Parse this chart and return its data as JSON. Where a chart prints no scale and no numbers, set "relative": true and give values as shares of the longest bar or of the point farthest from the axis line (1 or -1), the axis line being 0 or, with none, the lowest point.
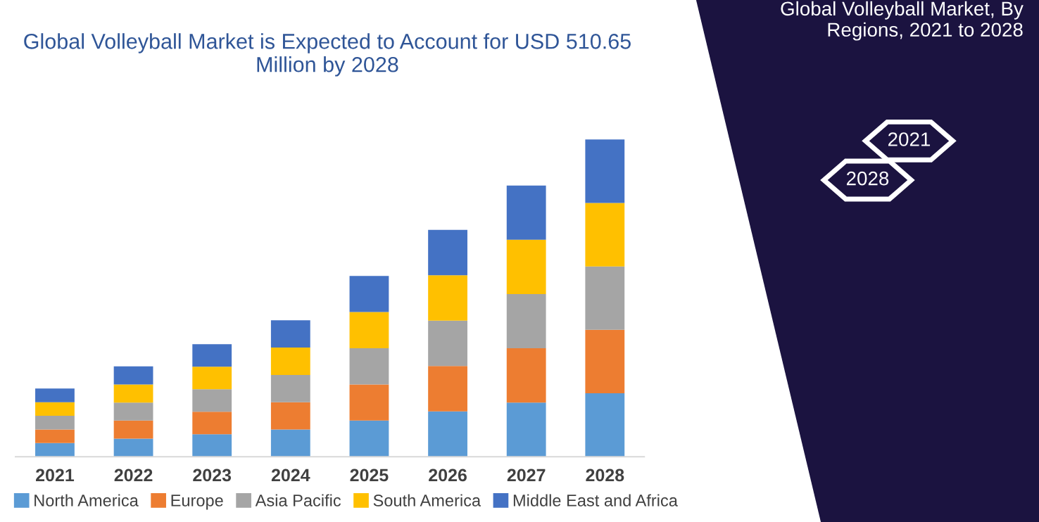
{
  "chart_data": {
    "type": "bar",
    "stacked": true,
    "relative": true,
    "title": "Global Volleyball Market is Expected to Account for USD 510.65\nMillion by 2028",
    "subtitle": "Global Volleyball Market, By\nRegions, 2021 to 2028",
    "annotations": [
      "2021",
      "2028"
    ],
    "categories": [
      "2021",
      "2022",
      "2023",
      "2024",
      "2025",
      "2026",
      "2027",
      "2028"
    ],
    "series": [
      {
        "name": "North America",
        "color": "#5b9bd5",
        "values": [
          0.043,
          0.057,
          0.071,
          0.086,
          0.114,
          0.143,
          0.171,
          0.2
        ]
      },
      {
        "name": "Europe",
        "color": "#ed7d31",
        "values": [
          0.043,
          0.057,
          0.071,
          0.086,
          0.114,
          0.143,
          0.171,
          0.2
        ]
      },
      {
        "name": "Asia Pacific",
        "color": "#a5a5a5",
        "values": [
          0.043,
          0.057,
          0.071,
          0.086,
          0.114,
          0.143,
          0.171,
          0.2
        ]
      },
      {
        "name": "South America",
        "color": "#ffc000",
        "values": [
          0.043,
          0.057,
          0.071,
          0.086,
          0.114,
          0.143,
          0.171,
          0.2
        ]
      },
      {
        "name": "Middle East and Africa",
        "color": "#4472c4",
        "values": [
          0.043,
          0.057,
          0.071,
          0.086,
          0.114,
          0.143,
          0.171,
          0.2
        ]
      }
    ],
    "legend": "bottom",
    "grid": false
  }
}
